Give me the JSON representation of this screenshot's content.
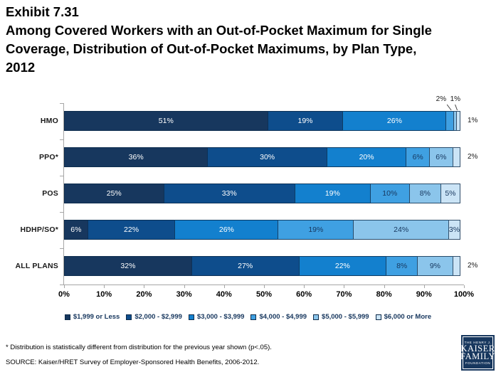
{
  "title": {
    "lines": [
      "Exhibit 7.31",
      "Among Covered Workers with an Out-of-Pocket Maximum for Single",
      "Coverage, Distribution of Out-of-Pocket Maximums, by Plan Type,",
      "2012"
    ]
  },
  "chart_data": {
    "type": "bar",
    "orientation": "horizontal-stacked",
    "title": "Among Covered Workers with an Out-of-Pocket Maximum for Single Coverage, Distribution of Out-of-Pocket Maximums, by Plan Type, 2012",
    "categories": [
      "HMO",
      "PPO*",
      "POS",
      "HDHP/SO*",
      "ALL PLANS"
    ],
    "legend": [
      "$1,999 or Less",
      "$2,000 - $2,999",
      "$3,000 - $3,999",
      "$4,000 - $4,999",
      "$5,000 - $5,999",
      "$6,000 or More"
    ],
    "colors": [
      "#17375E",
      "#0E4D8C",
      "#1380CE",
      "#3FA0E2",
      "#8BC5EB",
      "#CBE4F6"
    ],
    "series": [
      {
        "category": "HMO",
        "values": [
          51,
          19,
          26,
          2,
          1,
          1
        ],
        "label_pos": [
          "in",
          "in",
          "in",
          "above",
          "above",
          "right"
        ]
      },
      {
        "category": "PPO*",
        "values": [
          36,
          30,
          20,
          6,
          6,
          2
        ],
        "label_pos": [
          "in",
          "in",
          "in",
          "in",
          "in",
          "right"
        ]
      },
      {
        "category": "POS",
        "values": [
          25,
          33,
          19,
          10,
          8,
          5
        ],
        "label_pos": [
          "in",
          "in",
          "in",
          "in",
          "in",
          "in"
        ]
      },
      {
        "category": "HDHP/SO*",
        "values": [
          6,
          22,
          26,
          19,
          24,
          3
        ],
        "label_pos": [
          "in",
          "in",
          "in",
          "in",
          "in",
          "in"
        ]
      },
      {
        "category": "ALL PLANS",
        "values": [
          32,
          27,
          22,
          8,
          9,
          2
        ],
        "label_pos": [
          "in",
          "in",
          "in",
          "in",
          "in",
          "right"
        ]
      }
    ],
    "value_suffix": "%",
    "xticks": [
      "0%",
      "10%",
      "20%",
      "30%",
      "40%",
      "50%",
      "60%",
      "70%",
      "80%",
      "90%",
      "100%"
    ],
    "xlim": [
      0,
      100
    ],
    "grid": false,
    "legend_position": "bottom",
    "label_color_light": "#ffffff",
    "label_color_dark": "#17375E"
  },
  "footnote": "* Distribution is statistically different from distribution for the previous year shown (p<.05).",
  "source": "SOURCE:  Kaiser/HRET Survey of Employer-Sponsored Health Benefits, 2006-2012.",
  "logo": {
    "lines": [
      "THE HENRY J.",
      "KAISER",
      "FAMILY",
      "FOUNDATION"
    ]
  }
}
